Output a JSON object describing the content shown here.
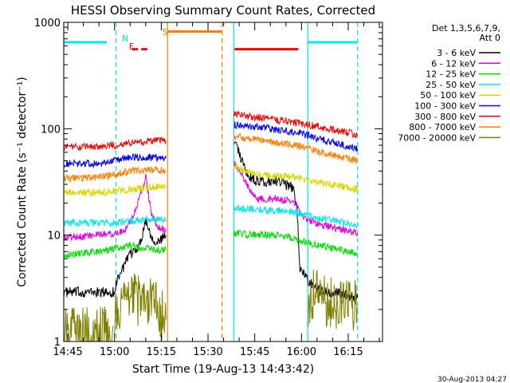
{
  "chart_data": {
    "type": "line",
    "title": "HESSI Observing Summary Count Rates, Corrected",
    "xlabel": "Start Time (19-Aug-13 14:43:42)",
    "ylabel": "Corrected Count Rate (s⁻¹ detector⁻¹)",
    "x_ticks": [
      "14:45",
      "15:00",
      "15:15",
      "15:30",
      "15:45",
      "16:00",
      "16:15"
    ],
    "x_tick_minutes": [
      885,
      900,
      915,
      930,
      945,
      960,
      975
    ],
    "xlim_minutes": [
      883.7,
      986
    ],
    "yscale": "log",
    "ylim": [
      1,
      1000
    ],
    "y_ticks": [
      "1",
      "10",
      "100",
      "1000"
    ],
    "legend_header": [
      "Det 1,3,5,6,7,9,",
      "Att 0"
    ],
    "legend_position": "right",
    "footer_date": "30-Aug-2013 04:27",
    "series": [
      {
        "name": "3 - 6 keV",
        "color": "#000000",
        "segments": [
          [
            [
              883.7,
              2.9
            ],
            [
              900,
              2.9
            ],
            [
              901,
              4
            ],
            [
              905,
              6.5
            ],
            [
              908,
              8
            ],
            [
              910,
              14
            ],
            [
              912,
              9.5
            ],
            [
              914,
              8.5
            ],
            [
              916.5,
              10
            ]
          ],
          [
            [
              938.3,
              80
            ],
            [
              940,
              60
            ],
            [
              942,
              40
            ],
            [
              944,
              34
            ],
            [
              946,
              32
            ],
            [
              950,
              32
            ],
            [
              953,
              32
            ],
            [
              957,
              28
            ],
            [
              958.5,
              20
            ],
            [
              959.5,
              5
            ],
            [
              962,
              3.8
            ],
            [
              966,
              3
            ],
            [
              970,
              2.9
            ],
            [
              975,
              2.7
            ],
            [
              978,
              2.6
            ]
          ]
        ]
      },
      {
        "name": "6 - 12 keV",
        "color": "#e400e4",
        "segments": [
          [
            [
              883.7,
              9.5
            ],
            [
              895,
              10
            ],
            [
              900,
              10.5
            ],
            [
              903,
              11
            ],
            [
              906,
              15
            ],
            [
              910,
              35
            ],
            [
              912,
              15
            ],
            [
              914,
              12
            ],
            [
              916.5,
              11
            ]
          ],
          [
            [
              938.3,
              50
            ],
            [
              941,
              36
            ],
            [
              943,
              28
            ],
            [
              946,
              22
            ],
            [
              952,
              22
            ],
            [
              956,
              21
            ],
            [
              958,
              20
            ],
            [
              960,
              15
            ],
            [
              966,
              12.5
            ],
            [
              972,
              11.5
            ],
            [
              978,
              10.5
            ]
          ]
        ]
      },
      {
        "name": "12 - 25 keV",
        "color": "#00e000",
        "segments": [
          [
            [
              883.7,
              6.5
            ],
            [
              895,
              7
            ],
            [
              900,
              7.5
            ],
            [
              905,
              8
            ],
            [
              910,
              7.5
            ],
            [
              916.5,
              7.2
            ]
          ],
          [
            [
              938.3,
              10.5
            ],
            [
              945,
              10
            ],
            [
              950,
              10
            ],
            [
              955,
              9.8
            ],
            [
              960,
              8.8
            ],
            [
              966,
              8
            ],
            [
              972,
              7.3
            ],
            [
              978,
              6.8
            ]
          ]
        ]
      },
      {
        "name": "25 - 50 keV",
        "color": "#00e8e8",
        "segments": [
          [
            [
              883.7,
              13
            ],
            [
              895,
              13
            ],
            [
              900,
              13
            ],
            [
              905,
              13.5
            ],
            [
              910,
              14
            ],
            [
              916.5,
              14
            ]
          ],
          [
            [
              938.3,
              18
            ],
            [
              945,
              17.5
            ],
            [
              950,
              17
            ],
            [
              955,
              17
            ],
            [
              960,
              16
            ],
            [
              966,
              14.5
            ],
            [
              972,
              13.5
            ],
            [
              978,
              12.5
            ]
          ]
        ]
      },
      {
        "name": "50 - 100 keV",
        "color": "#d8d800",
        "segments": [
          [
            [
              883.7,
              25
            ],
            [
              895,
              25
            ],
            [
              900,
              26
            ],
            [
              905,
              27
            ],
            [
              910,
              28
            ],
            [
              916.5,
              29
            ]
          ],
          [
            [
              938.3,
              45
            ],
            [
              942,
              40
            ],
            [
              946,
              37
            ],
            [
              952,
              36
            ],
            [
              958,
              35
            ],
            [
              960,
              34
            ],
            [
              966,
              31
            ],
            [
              972,
              29
            ],
            [
              978,
              27
            ]
          ]
        ]
      },
      {
        "name": "100 - 300 keV",
        "color": "#0000ff",
        "segments": [
          [
            [
              883.7,
              47
            ],
            [
              895,
              47
            ],
            [
              900,
              50
            ],
            [
              905,
              54
            ],
            [
              910,
              54
            ],
            [
              916.5,
              53
            ]
          ],
          [
            [
              938.3,
              110
            ],
            [
              944,
              105
            ],
            [
              950,
              100
            ],
            [
              955,
              95
            ],
            [
              960,
              90
            ],
            [
              966,
              80
            ],
            [
              972,
              72
            ],
            [
              978,
              65
            ]
          ]
        ]
      },
      {
        "name": "300 - 800 keV",
        "color": "#ff0000",
        "segments": [
          [
            [
              883.7,
              67
            ],
            [
              895,
              68
            ],
            [
              900,
              70
            ],
            [
              905,
              73
            ],
            [
              910,
              76
            ],
            [
              916.5,
              78
            ]
          ],
          [
            [
              938.3,
              140
            ],
            [
              944,
              130
            ],
            [
              950,
              122
            ],
            [
              955,
              118
            ],
            [
              960,
              112
            ],
            [
              966,
              104
            ],
            [
              972,
              95
            ],
            [
              978,
              88
            ]
          ]
        ]
      },
      {
        "name": "800 - 7000 keV",
        "color": "#ff7f00",
        "segments": [
          [
            [
              883.7,
              34
            ],
            [
              895,
              35
            ],
            [
              900,
              37
            ],
            [
              905,
              40
            ],
            [
              910,
              41
            ],
            [
              916.5,
              41
            ]
          ],
          [
            [
              938.3,
              85
            ],
            [
              944,
              80
            ],
            [
              950,
              75
            ],
            [
              955,
              72
            ],
            [
              960,
              68
            ],
            [
              966,
              60
            ],
            [
              972,
              55
            ],
            [
              978,
              50
            ]
          ]
        ]
      },
      {
        "name": "7000 - 20000 keV",
        "color": "#808000",
        "segments": [
          [
            [
              884,
              1.2
            ],
            [
              890,
              1.25
            ],
            [
              895,
              1.2
            ],
            [
              899.5,
              1.4
            ]
          ],
          [
            [
              900,
              2
            ],
            [
              903,
              2.2
            ],
            [
              906,
              2.6
            ],
            [
              909,
              2.2
            ],
            [
              912,
              2.4
            ],
            [
              916.5,
              1.6
            ]
          ],
          [
            [
              962,
              2.4
            ],
            [
              965,
              2.9
            ],
            [
              968,
              2.4
            ],
            [
              971,
              2.2
            ],
            [
              975,
              2.3
            ],
            [
              978,
              2.1
            ]
          ]
        ]
      }
    ],
    "flag_bars": [
      {
        "label": "",
        "color": "#00e8e8",
        "y": 650,
        "start": 883.7,
        "end": 897.5
      },
      {
        "label": "N",
        "color": "#00e8e8",
        "y": 650,
        "start": null,
        "end": null
      },
      {
        "label": "F",
        "color": "#ff0000",
        "y": 560,
        "start": 905.5,
        "end": 910.5,
        "dashed": true
      },
      {
        "label": "S",
        "color": "#ff7f00",
        "y": 820,
        "start": 917,
        "end": 934.5
      },
      {
        "label": "",
        "color": "#ff0000",
        "y": 560,
        "start": 938.5,
        "end": 959
      },
      {
        "label": "",
        "color": "#00e8e8",
        "y": 650,
        "start": 962,
        "end": 978
      }
    ],
    "vertical_lines": [
      {
        "x": 883.7,
        "color": "#00e8e8",
        "dashed": false
      },
      {
        "x": 900.5,
        "color": "#00e8e8",
        "dashed": true
      },
      {
        "x": 917,
        "color": "#ff7f00",
        "dashed": false
      },
      {
        "x": 934.5,
        "color": "#ff7f00",
        "dashed": true
      },
      {
        "x": 938.3,
        "color": "#00e8e8",
        "dashed": false
      },
      {
        "x": 962,
        "color": "#00e8e8",
        "dashed": false
      },
      {
        "x": 978,
        "color": "#00e8e8",
        "dashed": true
      }
    ]
  }
}
